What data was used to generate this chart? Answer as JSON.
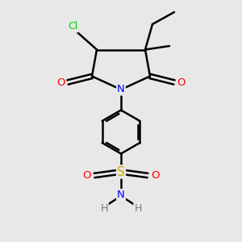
{
  "background_color": "#e8e8e8",
  "bond_color": "#000000",
  "atom_colors": {
    "Cl": "#00cc00",
    "O": "#ff0000",
    "N": "#0000ff",
    "S": "#ccaa00",
    "H": "#777777",
    "C": "#000000"
  },
  "figsize": [
    3.0,
    3.0
  ],
  "dpi": 100
}
